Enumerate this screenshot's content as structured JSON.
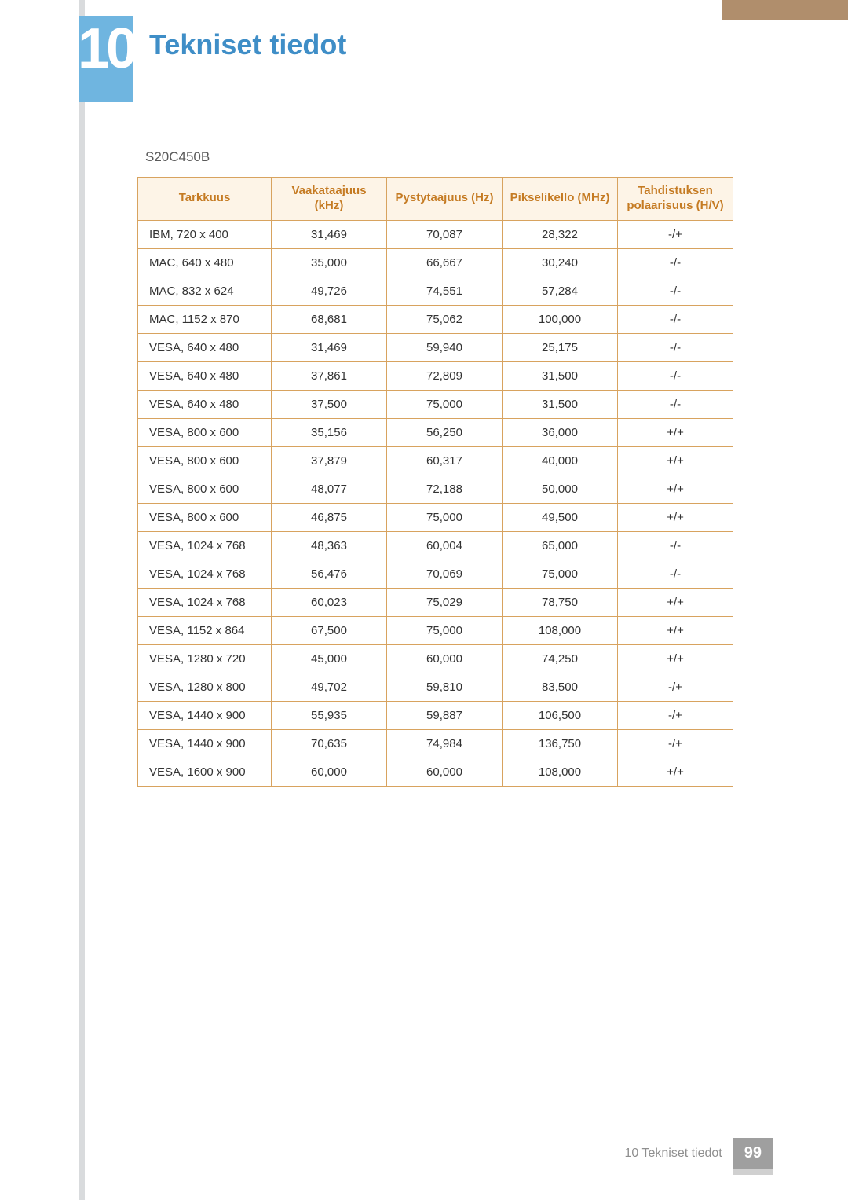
{
  "chapter": {
    "number": "10",
    "title": "Tekniset tiedot"
  },
  "section_subtitle": "S20C450B",
  "table": {
    "headers": [
      "Tarkkuus",
      "Vaakataajuus (kHz)",
      "Pystytaajuus (Hz)",
      "Pikselikello (MHz)",
      "Tahdistuksen polaarisuus (H/V)"
    ],
    "rows": [
      [
        "IBM, 720 x 400",
        "31,469",
        "70,087",
        "28,322",
        "-/+"
      ],
      [
        "MAC, 640 x 480",
        "35,000",
        "66,667",
        "30,240",
        "-/-"
      ],
      [
        "MAC, 832 x 624",
        "49,726",
        "74,551",
        "57,284",
        "-/-"
      ],
      [
        "MAC, 1152 x 870",
        "68,681",
        "75,062",
        "100,000",
        "-/-"
      ],
      [
        "VESA, 640 x 480",
        "31,469",
        "59,940",
        "25,175",
        "-/-"
      ],
      [
        "VESA, 640 x 480",
        "37,861",
        "72,809",
        "31,500",
        "-/-"
      ],
      [
        "VESA, 640 x 480",
        "37,500",
        "75,000",
        "31,500",
        "-/-"
      ],
      [
        "VESA, 800 x 600",
        "35,156",
        "56,250",
        "36,000",
        "+/+"
      ],
      [
        "VESA, 800 x 600",
        "37,879",
        "60,317",
        "40,000",
        "+/+"
      ],
      [
        "VESA, 800 x 600",
        "48,077",
        "72,188",
        "50,000",
        "+/+"
      ],
      [
        "VESA, 800 x 600",
        "46,875",
        "75,000",
        "49,500",
        "+/+"
      ],
      [
        "VESA, 1024 x 768",
        "48,363",
        "60,004",
        "65,000",
        "-/-"
      ],
      [
        "VESA, 1024 x 768",
        "56,476",
        "70,069",
        "75,000",
        "-/-"
      ],
      [
        "VESA, 1024 x 768",
        "60,023",
        "75,029",
        "78,750",
        "+/+"
      ],
      [
        "VESA, 1152 x 864",
        "67,500",
        "75,000",
        "108,000",
        "+/+"
      ],
      [
        "VESA, 1280 x 720",
        "45,000",
        "60,000",
        "74,250",
        "+/+"
      ],
      [
        "VESA, 1280 x 800",
        "49,702",
        "59,810",
        "83,500",
        "-/+"
      ],
      [
        "VESA, 1440 x 900",
        "55,935",
        "59,887",
        "106,500",
        "-/+"
      ],
      [
        "VESA, 1440 x 900",
        "70,635",
        "74,984",
        "136,750",
        "-/+"
      ],
      [
        "VESA, 1600 x 900",
        "60,000",
        "60,000",
        "108,000",
        "+/+"
      ]
    ]
  },
  "footer": {
    "label": "10 Tekniset tiedot",
    "page": "99"
  },
  "colors": {
    "accent_brown": "#b08e6c",
    "badge_blue": "#6fb5e0",
    "title_blue": "#3f8ec7",
    "header_bg": "#fdf4e7",
    "header_text": "#c57b23",
    "border": "#d8a35f",
    "rail_grey": "#d9dbdd",
    "footer_grey": "#9f9f9f"
  }
}
